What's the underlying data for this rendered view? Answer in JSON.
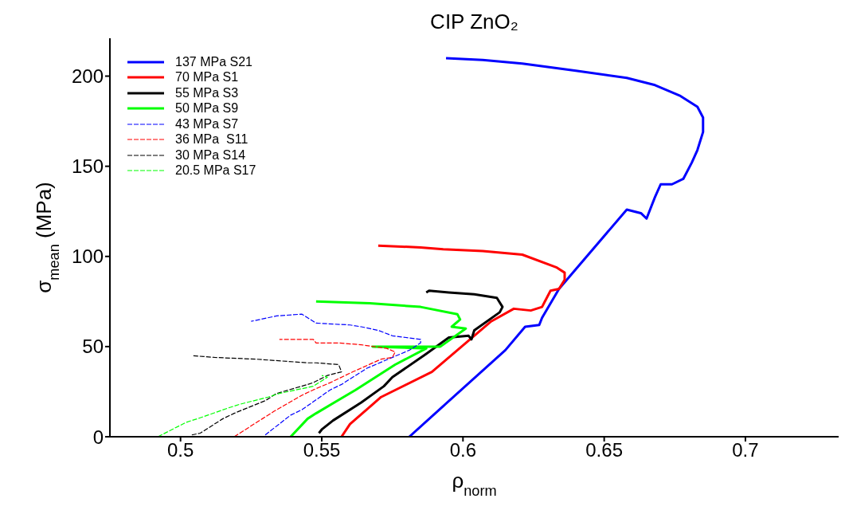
{
  "chart_data": {
    "type": "line",
    "title": "CIP ZnO₂",
    "xlabel": "ρ$_{norm}$",
    "ylabel": "σ$_{mean}$ (MPa)",
    "xlim": [
      0.475,
      0.733
    ],
    "xticks": [
      0.5,
      0.55,
      0.6,
      0.65,
      0.7
    ],
    "ylim": [
      0,
      221
    ],
    "yticks": [
      0,
      50,
      100,
      150,
      200
    ],
    "grid": false,
    "legend": "top left",
    "marker": "none",
    "series": [
      {
        "name": "137 MPa S21",
        "color": "#0000ff",
        "line_style": "solid",
        "x": [
          0.581,
          0.593,
          0.615,
          0.622,
          0.627,
          0.628,
          0.634,
          0.658,
          0.663,
          0.665,
          0.668,
          0.67,
          0.674,
          0.678,
          0.681,
          0.683,
          0.685,
          0.685,
          0.683,
          0.677,
          0.668,
          0.658,
          0.64,
          0.621,
          0.607,
          0.594
        ],
        "values": [
          0,
          17,
          48,
          61,
          62,
          66,
          82,
          126,
          124,
          121,
          133,
          140,
          140,
          143,
          152,
          159,
          169,
          177,
          183,
          189,
          195,
          199,
          203,
          207,
          209,
          210
        ]
      },
      {
        "name": "70 MPa S1",
        "color": "#ff0000",
        "line_style": "solid",
        "x": [
          0.557,
          0.56,
          0.571,
          0.589,
          0.601,
          0.61,
          0.618,
          0.624,
          0.628,
          0.629,
          0.631,
          0.634,
          0.636,
          0.636,
          0.633,
          0.621,
          0.607,
          0.593,
          0.585,
          0.57
        ],
        "values": [
          0,
          7,
          22,
          36,
          52,
          64,
          71,
          70,
          72,
          75,
          81,
          82,
          87,
          91,
          94,
          101,
          103,
          104,
          105,
          106
        ]
      },
      {
        "name": "55 MPa S3",
        "color": "#000000",
        "line_style": "solid",
        "x": [
          0.549,
          0.55,
          0.554,
          0.564,
          0.572,
          0.575,
          0.587,
          0.595,
          0.602,
          0.603,
          0.604,
          0.613,
          0.614,
          0.612,
          0.604,
          0.595,
          0.588,
          0.587
        ],
        "values": [
          2,
          4,
          9,
          19,
          28,
          33,
          46,
          55,
          56,
          54,
          59,
          69,
          72,
          77,
          79,
          80,
          81,
          80
        ]
      },
      {
        "name": "50 MPa S9",
        "color": "#00ff00",
        "line_style": "solid",
        "x": [
          0.539,
          0.545,
          0.548,
          0.562,
          0.576,
          0.587,
          0.568,
          0.592,
          0.601,
          0.596,
          0.599,
          0.598,
          0.585,
          0.567,
          0.548
        ],
        "values": [
          0,
          10,
          13,
          26,
          40,
          49,
          50,
          50,
          60,
          61,
          65,
          68,
          72,
          74,
          75
        ]
      },
      {
        "name": "43 MPa S7",
        "color": "#0000ff",
        "line_style": "dashed",
        "x": [
          0.53,
          0.539,
          0.543,
          0.553,
          0.557,
          0.566,
          0.581,
          0.585,
          0.585,
          0.575,
          0.57,
          0.564,
          0.56,
          0.548,
          0.543,
          0.534,
          0.525
        ],
        "values": [
          1,
          12,
          15,
          26,
          29,
          38,
          48,
          52,
          54,
          56,
          59,
          61,
          62,
          63,
          68,
          67,
          64
        ]
      },
      {
        "name": "36 MPa  S11",
        "color": "#ff0000",
        "line_style": "dashed",
        "x": [
          0.519,
          0.529,
          0.533,
          0.543,
          0.547,
          0.553,
          0.561,
          0.571,
          0.575,
          0.576,
          0.573,
          0.564,
          0.556,
          0.548,
          0.547,
          0.535
        ],
        "values": [
          0,
          10,
          14,
          23,
          26,
          30,
          36,
          43,
          44,
          47,
          49,
          51,
          52,
          52,
          54,
          54
        ]
      },
      {
        "name": "30 MPa S14",
        "color": "#000000",
        "line_style": "dashed",
        "x": [
          0.504,
          0.507,
          0.515,
          0.519,
          0.53,
          0.534,
          0.545,
          0.547,
          0.552,
          0.557,
          0.556,
          0.548,
          0.545,
          0.527,
          0.512,
          0.504
        ],
        "values": [
          1,
          2,
          10,
          13,
          20,
          24,
          29,
          30,
          34,
          36,
          40,
          41,
          41,
          43,
          44,
          45
        ]
      },
      {
        "name": "20.5 MPa S17",
        "color": "#00ff00",
        "line_style": "dashed",
        "x": [
          0.492,
          0.502,
          0.506,
          0.517,
          0.521,
          0.531,
          0.535,
          0.547,
          0.552,
          0.55
        ],
        "values": [
          0,
          8,
          10,
          16,
          18,
          22,
          24,
          28,
          33,
          34
        ]
      }
    ]
  }
}
